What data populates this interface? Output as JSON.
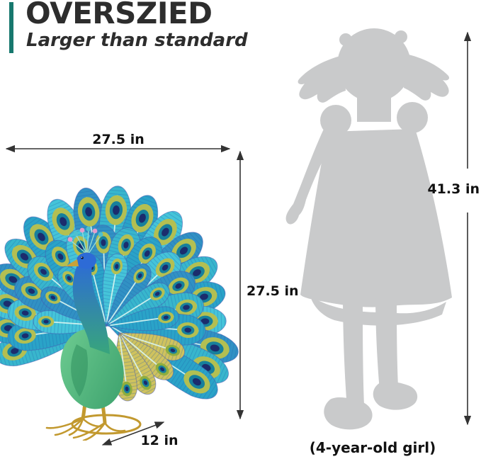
{
  "header": {
    "title": "OVERSZIED",
    "subtitle": "Larger than standard",
    "accent_color": "#17786e"
  },
  "peacock": {
    "name": "peacock garden statue",
    "width_label": "27.5 in",
    "height_label": "27.5 in",
    "depth_label": "12 in",
    "palette": {
      "feather_teal": "#38b6cd",
      "feather_blue": "#2aa3c8",
      "feather_light": "#45c4d9",
      "feather_deep": "#3191c4",
      "feather_edge": "#4a55b0",
      "barb_line": "#1f5fa8",
      "stem": "#d9f5f1",
      "eye_ring": "#b3bf52",
      "eye_mid": "#17809c",
      "eye_center": "#1b2c6d",
      "gold_feather": "#cfc25e",
      "neck_blue": "#2d6bd6",
      "body_green": "#3ba06c",
      "body_light": "#6fcd92",
      "legs_gold": "#c2992f",
      "crest_pink": "#e59ccc",
      "crest_teal": "#4fc0cf"
    }
  },
  "girl": {
    "height_label": "41.3 in",
    "caption": "(4-year-old girl)",
    "silhouette_color": "#c9cacb"
  },
  "arrows": {
    "color": "#333333"
  }
}
